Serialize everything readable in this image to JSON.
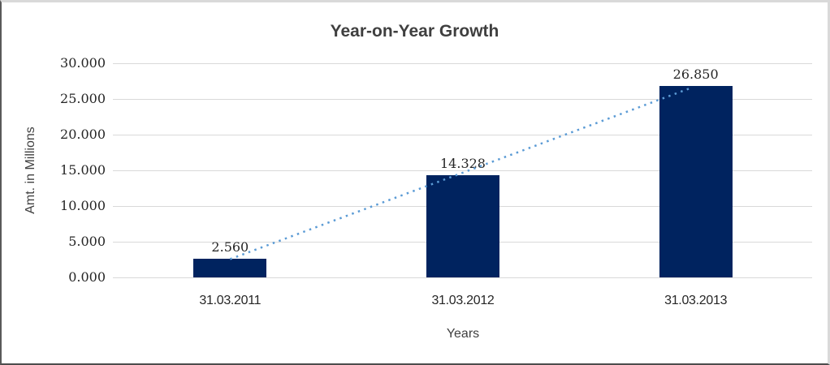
{
  "chart_data": {
    "type": "bar",
    "title": "Year-on-Year Growth",
    "xlabel": "Years",
    "ylabel": "Amt. in Millions",
    "categories": [
      "31.03.2011",
      "31.03.2012",
      "31.03.2013"
    ],
    "values": [
      2.56,
      14.328,
      26.85
    ],
    "data_labels": [
      "2.560",
      "14.328",
      "26.850"
    ],
    "y_ticks_top_to_bottom": [
      "30.000",
      "25.000",
      "20.000",
      "15.000",
      "10.000",
      "5.000",
      "0.000"
    ],
    "ylim": [
      0,
      30
    ],
    "grid": "horizontal-on",
    "legend": "none",
    "bar_color": "#00235f",
    "gridline_color": "#d9d9d9",
    "trendline": {
      "type": "linear",
      "style": "dotted",
      "color": "#5b9bd5",
      "from_category": "31.03.2011",
      "to_category": "31.03.2013"
    }
  }
}
